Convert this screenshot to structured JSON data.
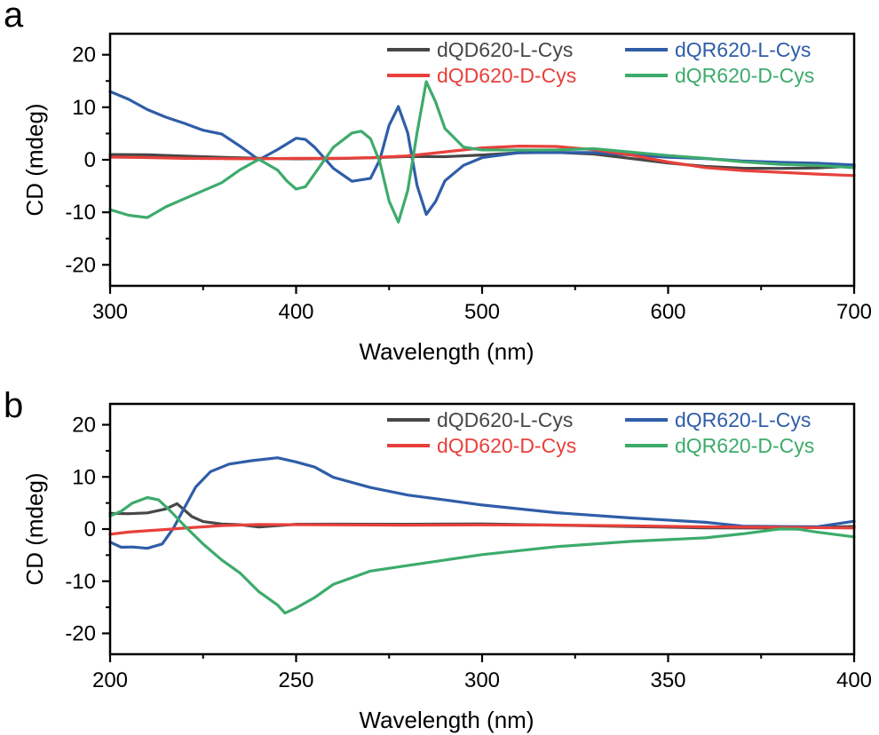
{
  "chart_data": [
    {
      "panel_label": "a",
      "type": "line",
      "xlabel": "Wavelength (nm)",
      "ylabel": "CD (mdeg)",
      "xlim": [
        300,
        700
      ],
      "ylim": [
        -24,
        24
      ],
      "xticks": [
        300,
        400,
        500,
        600,
        700
      ],
      "yticks": [
        -20,
        -10,
        0,
        10,
        20
      ],
      "grid": false,
      "legend_position": "top-right",
      "series": [
        {
          "name": "dQD620-L-Cys",
          "color": "#474747",
          "x": [
            300,
            320,
            340,
            360,
            380,
            400,
            420,
            440,
            460,
            480,
            500,
            520,
            540,
            560,
            580,
            600,
            620,
            640,
            660,
            680,
            700
          ],
          "y": [
            1.0,
            1.0,
            0.8,
            0.6,
            0.4,
            0.3,
            0.3,
            0.4,
            0.6,
            0.5,
            0.8,
            1.2,
            1.3,
            1.0,
            0.2,
            -0.6,
            -1.2,
            -1.5,
            -1.5,
            -1.4,
            -1.2
          ]
        },
        {
          "name": "dQR620-L-Cys",
          "color": "#2F5DA8",
          "x": [
            300,
            310,
            320,
            330,
            340,
            350,
            360,
            370,
            380,
            390,
            400,
            405,
            410,
            420,
            430,
            440,
            445,
            450,
            455,
            460,
            465,
            470,
            475,
            480,
            490,
            500,
            520,
            540,
            560,
            580,
            600,
            620,
            640,
            660,
            680,
            700
          ],
          "y": [
            13.0,
            11.5,
            9.5,
            8.0,
            6.8,
            5.5,
            4.8,
            2.5,
            0.0,
            2.0,
            4.2,
            4.0,
            2.5,
            -1.5,
            -4.0,
            -3.5,
            0.0,
            6.5,
            10.0,
            5.0,
            -5.0,
            -10.5,
            -8.0,
            -4.0,
            -1.0,
            0.5,
            1.5,
            1.5,
            1.5,
            1.0,
            0.5,
            0.2,
            -0.3,
            -0.6,
            -0.8,
            -1.0
          ]
        },
        {
          "name": "dQD620-D-Cys",
          "color": "#E8403B",
          "x": [
            300,
            320,
            340,
            360,
            380,
            400,
            420,
            440,
            460,
            480,
            500,
            520,
            540,
            560,
            580,
            600,
            620,
            640,
            660,
            680,
            700
          ],
          "y": [
            0.5,
            0.4,
            0.3,
            0.3,
            0.3,
            0.4,
            0.4,
            0.5,
            0.8,
            1.5,
            2.2,
            2.5,
            2.4,
            1.8,
            0.8,
            -0.5,
            -1.5,
            -2.0,
            -2.3,
            -2.6,
            -3.0
          ]
        },
        {
          "name": "dQR620-D-Cys",
          "color": "#3DAB6C",
          "x": [
            300,
            310,
            320,
            330,
            340,
            350,
            360,
            370,
            380,
            390,
            395,
            400,
            405,
            410,
            420,
            430,
            435,
            440,
            445,
            450,
            455,
            460,
            465,
            470,
            475,
            480,
            490,
            500,
            520,
            540,
            560,
            580,
            600,
            620,
            640,
            660,
            680,
            700
          ],
          "y": [
            -9.5,
            -10.5,
            -11.0,
            -9.0,
            -7.5,
            -6.0,
            -4.5,
            -2.0,
            0.0,
            -2.0,
            -4.0,
            -5.5,
            -5.0,
            -2.5,
            2.5,
            5.2,
            5.5,
            4.0,
            -0.5,
            -8.0,
            -12.0,
            -6.0,
            5.0,
            14.8,
            11.0,
            6.0,
            2.5,
            2.0,
            2.0,
            2.0,
            2.2,
            1.5,
            0.8,
            0.2,
            -0.5,
            -1.0,
            -1.2,
            -1.5
          ]
        }
      ]
    },
    {
      "panel_label": "b",
      "type": "line",
      "xlabel": "Wavelength (nm)",
      "ylabel": "CD (mdeg)",
      "xlim": [
        200,
        400
      ],
      "ylim": [
        -24,
        24
      ],
      "xticks": [
        200,
        250,
        300,
        350,
        400
      ],
      "yticks": [
        -20,
        -10,
        0,
        10,
        20
      ],
      "grid": false,
      "legend_position": "top-right",
      "series": [
        {
          "name": "dQD620-L-Cys",
          "color": "#474747",
          "x": [
            200,
            205,
            210,
            215,
            218,
            222,
            225,
            230,
            235,
            240,
            250,
            260,
            280,
            300,
            320,
            340,
            360,
            380,
            400
          ],
          "y": [
            3.0,
            3.0,
            3.2,
            4.0,
            5.0,
            2.5,
            1.5,
            1.0,
            0.8,
            0.3,
            0.8,
            0.8,
            0.8,
            0.9,
            0.7,
            0.5,
            0.3,
            0.3,
            0.5
          ]
        },
        {
          "name": "dQR620-L-Cys",
          "color": "#2F5DA8",
          "x": [
            200,
            203,
            206,
            210,
            214,
            217,
            220,
            223,
            227,
            232,
            238,
            245,
            250,
            255,
            260,
            270,
            280,
            290,
            300,
            320,
            340,
            360,
            370,
            380,
            390,
            400
          ],
          "y": [
            -2.5,
            -3.5,
            -3.5,
            -3.8,
            -3.0,
            0.0,
            4.0,
            8.0,
            11.0,
            12.5,
            13.2,
            13.8,
            13.0,
            12.0,
            10.0,
            8.0,
            6.5,
            5.5,
            4.5,
            3.0,
            2.0,
            1.2,
            0.5,
            0.5,
            0.5,
            1.5
          ]
        },
        {
          "name": "dQD620-D-Cys",
          "color": "#E8403B",
          "x": [
            200,
            205,
            210,
            215,
            220,
            230,
            240,
            260,
            280,
            300,
            320,
            340,
            360,
            380,
            400
          ],
          "y": [
            -1.0,
            -0.6,
            -0.3,
            0.0,
            0.3,
            0.8,
            1.0,
            0.9,
            0.8,
            0.8,
            0.7,
            0.5,
            0.3,
            0.2,
            0.2
          ]
        },
        {
          "name": "dQR620-D-Cys",
          "color": "#3DAB6C",
          "x": [
            200,
            203,
            206,
            210,
            213,
            216,
            220,
            225,
            230,
            235,
            240,
            245,
            247,
            250,
            255,
            260,
            270,
            280,
            290,
            300,
            320,
            340,
            360,
            370,
            380,
            385,
            390,
            400
          ],
          "y": [
            2.5,
            3.5,
            5.0,
            6.0,
            5.5,
            3.5,
            0.5,
            -3.0,
            -6.0,
            -8.5,
            -12.0,
            -14.5,
            -16.0,
            -15.0,
            -13.0,
            -10.5,
            -8.0,
            -7.0,
            -6.0,
            -5.0,
            -3.5,
            -2.5,
            -1.8,
            -1.0,
            0.0,
            0.0,
            -0.5,
            -1.5
          ]
        }
      ]
    }
  ]
}
